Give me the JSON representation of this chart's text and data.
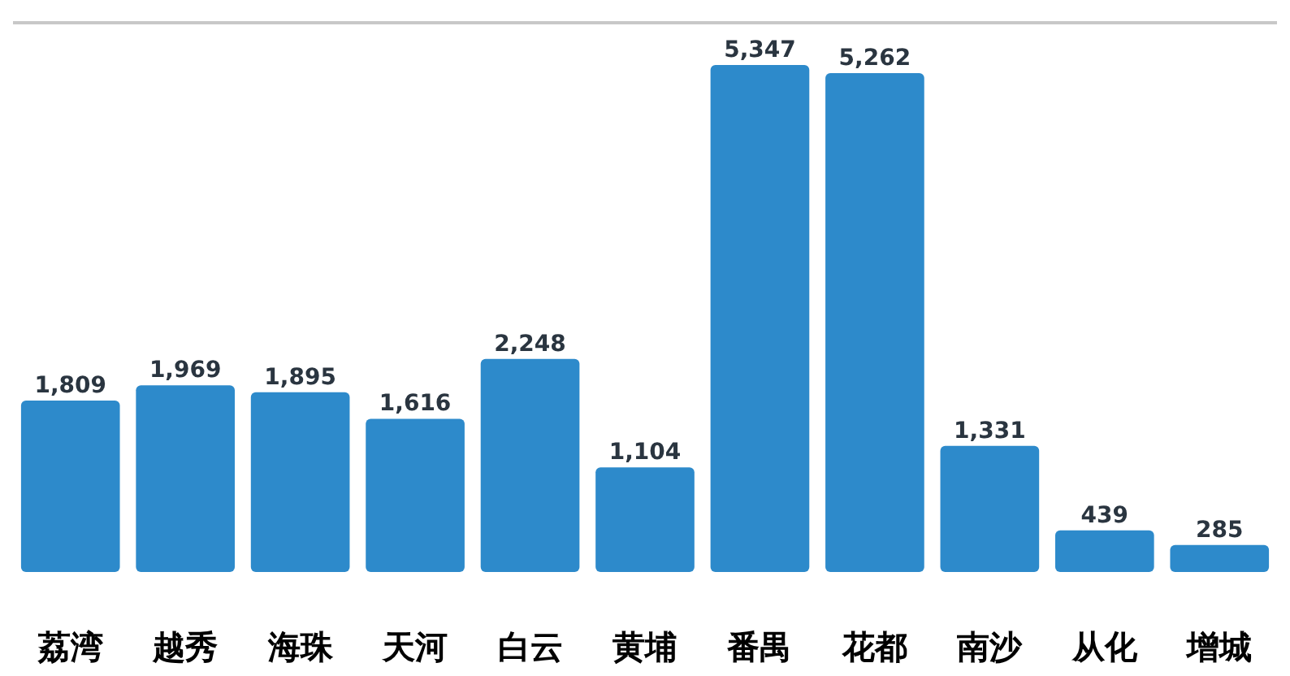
{
  "chart_data": {
    "type": "bar",
    "categories": [
      "荔湾",
      "越秀",
      "海珠",
      "天河",
      "白云",
      "黄埔",
      "番禺",
      "花都",
      "南沙",
      "从化",
      "增城"
    ],
    "values": [
      1809,
      1969,
      1895,
      1616,
      2248,
      1104,
      5347,
      5262,
      1331,
      439,
      285
    ],
    "value_labels": [
      "1,809",
      "1,969",
      "1,895",
      "1,616",
      "2,248",
      "1,104",
      "5,347",
      "5,262",
      "1,331",
      "439",
      "285"
    ],
    "color": "#2d8acb"
  }
}
